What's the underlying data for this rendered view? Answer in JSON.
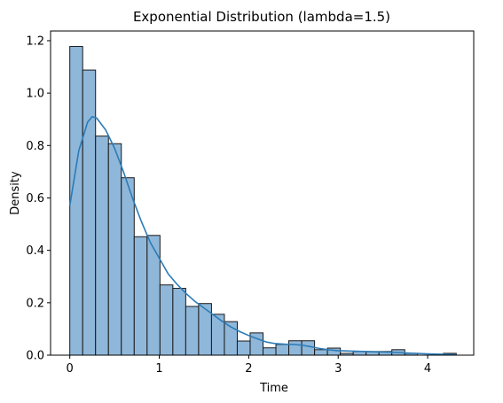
{
  "chart_data": {
    "type": "bar",
    "title": "Exponential Distribution (lambda=1.5)",
    "xlabel": "Time",
    "ylabel": "Density",
    "xlim": [
      -0.215,
      4.515
    ],
    "ylim": [
      0,
      1.237
    ],
    "x_ticks": [
      "0",
      "1",
      "2",
      "3",
      "4"
    ],
    "x_tick_values": [
      0,
      1,
      2,
      3,
      4
    ],
    "y_ticks": [
      "0.0",
      "0.2",
      "0.4",
      "0.6",
      "0.8",
      "1.0",
      "1.2"
    ],
    "y_tick_values": [
      0,
      0.2,
      0.4,
      0.6,
      0.8,
      1.0,
      1.2
    ],
    "bin_edges": [
      0.0,
      0.144,
      0.288,
      0.432,
      0.576,
      0.72,
      0.864,
      1.008,
      1.152,
      1.296,
      1.44,
      1.584,
      1.728,
      1.872,
      2.016,
      2.16,
      2.304,
      2.448,
      2.592,
      2.736,
      2.88,
      3.024,
      3.168,
      3.312,
      3.456,
      3.6,
      3.744,
      3.888,
      4.032,
      4.176,
      4.32
    ],
    "values": [
      1.178,
      1.088,
      0.836,
      0.807,
      0.677,
      0.452,
      0.457,
      0.268,
      0.255,
      0.186,
      0.197,
      0.156,
      0.128,
      0.054,
      0.085,
      0.028,
      0.041,
      0.055,
      0.055,
      0.021,
      0.027,
      0.007,
      0.014,
      0.014,
      0.014,
      0.021,
      0.007,
      0.0,
      0.0,
      0.007
    ],
    "kde": {
      "x": [
        0.0,
        0.1,
        0.2,
        0.25,
        0.3,
        0.4,
        0.5,
        0.6,
        0.7,
        0.8,
        0.9,
        1.0,
        1.1,
        1.2,
        1.3,
        1.4,
        1.5,
        1.6,
        1.7,
        1.8,
        1.9,
        2.0,
        2.1,
        2.2,
        2.3,
        2.4,
        2.5,
        2.6,
        2.7,
        2.8,
        2.9,
        3.0,
        3.2,
        3.4,
        3.6,
        3.8,
        4.0,
        4.2,
        4.32
      ],
      "y": [
        0.57,
        0.78,
        0.89,
        0.91,
        0.905,
        0.86,
        0.79,
        0.7,
        0.6,
        0.51,
        0.43,
        0.37,
        0.31,
        0.27,
        0.235,
        0.205,
        0.18,
        0.155,
        0.13,
        0.108,
        0.09,
        0.075,
        0.062,
        0.05,
        0.044,
        0.042,
        0.041,
        0.038,
        0.032,
        0.025,
        0.02,
        0.017,
        0.015,
        0.013,
        0.011,
        0.008,
        0.005,
        0.003,
        0.002
      ]
    },
    "colors": {
      "bar_fill": "#8fb7d9",
      "bar_edge": "#1a1a1a",
      "kde_line": "#2c7bb6"
    },
    "grid": false,
    "legend": "none"
  }
}
